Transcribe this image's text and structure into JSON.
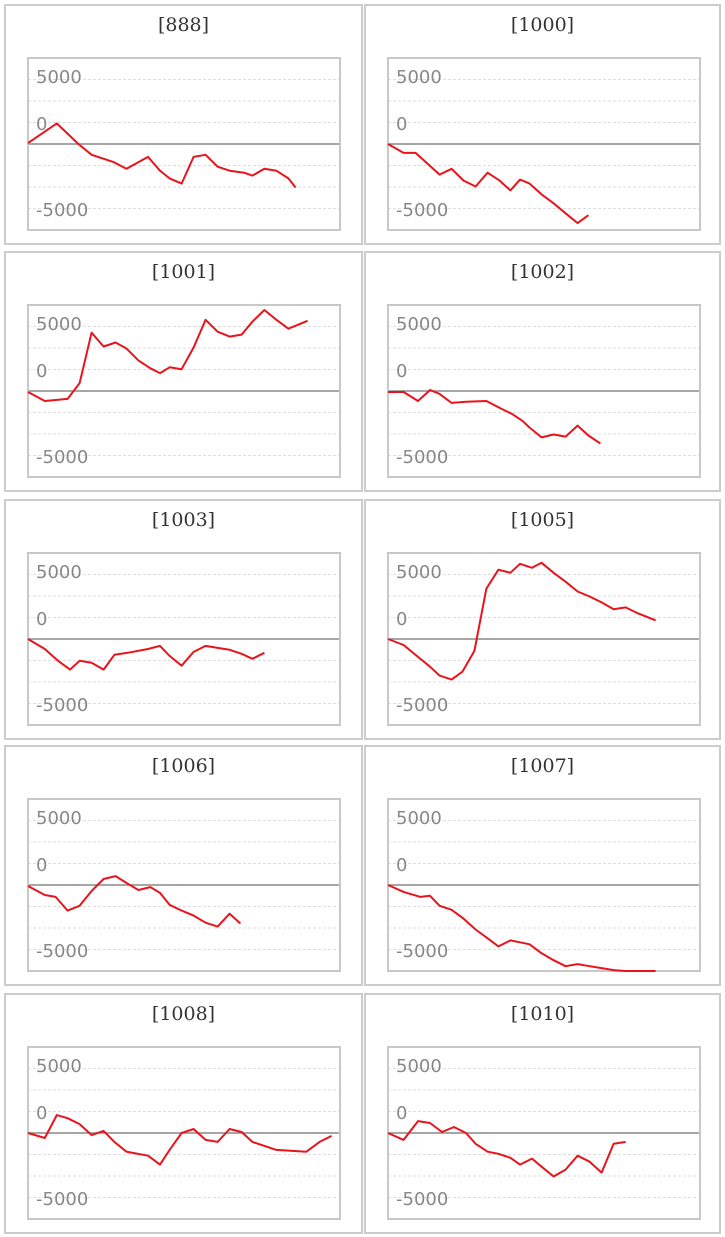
{
  "chart_data": [
    {
      "type": "line",
      "title": "[888]",
      "color": "#e8141c",
      "xlim": [
        0,
        26
      ],
      "ylim": [
        -5000,
        5000
      ],
      "yticks": [
        5000,
        0,
        -5000
      ],
      "x": [
        0,
        2.4,
        4.2,
        5.3,
        7.1,
        8.2,
        10,
        11,
        11.8,
        12.8,
        13.8,
        14.8,
        15.8,
        16.8,
        18,
        18.7,
        19.7,
        20.7,
        21.7,
        22.3
      ],
      "values": [
        50,
        1200,
        0,
        -630,
        -1040,
        -1440,
        -750,
        -1550,
        -2000,
        -2300,
        -750,
        -630,
        -1320,
        -1550,
        -1670,
        -1840,
        -1440,
        -1550,
        -2000,
        -2530
      ]
    },
    {
      "type": "line",
      "title": "[1000]",
      "color": "#e8141c",
      "xlim": [
        0,
        26
      ],
      "ylim": [
        -5000,
        5000
      ],
      "yticks": [
        5000,
        0,
        -5000
      ],
      "x": [
        0,
        1.3,
        2.3,
        3.3,
        4.3,
        5.3,
        6.3,
        7.3,
        8.3,
        9.3,
        10.2,
        11,
        11.8,
        12.8,
        13.8,
        14.8,
        15.8,
        16.7
      ],
      "values": [
        0,
        -520,
        -520,
        -1150,
        -1780,
        -1440,
        -2130,
        -2470,
        -1670,
        -2130,
        -2700,
        -2070,
        -2300,
        -2930,
        -3450,
        -4030,
        -4600,
        -4140
      ]
    },
    {
      "type": "line",
      "title": "[1001]",
      "color": "#e8141c",
      "xlim": [
        0,
        26
      ],
      "ylim": [
        -5000,
        5000
      ],
      "yticks": [
        5000,
        0,
        -5000
      ],
      "x": [
        0,
        1.4,
        3.3,
        4.3,
        5.3,
        6.3,
        7.3,
        8.2,
        9.2,
        10.2,
        11,
        11.8,
        12.8,
        13.8,
        14.8,
        15.8,
        16.8,
        17.8,
        18.7,
        19.7,
        20.7,
        21.7,
        23.3
      ],
      "values": [
        -60,
        -580,
        -460,
        460,
        3390,
        2590,
        2820,
        2470,
        1780,
        1320,
        1040,
        1380,
        1270,
        2530,
        4140,
        3450,
        3160,
        3280,
        4030,
        4710,
        4140,
        3620,
        4080
      ]
    },
    {
      "type": "line",
      "title": "[1002]",
      "color": "#e8141c",
      "xlim": [
        0,
        26
      ],
      "ylim": [
        -5000,
        5000
      ],
      "yticks": [
        5000,
        0,
        -5000
      ],
      "x": [
        0,
        1.3,
        2.5,
        3.5,
        4.3,
        5.3,
        6.5,
        8.2,
        9.3,
        10.3,
        11.2,
        11.8,
        12.8,
        13.8,
        14.8,
        15.8,
        16.7,
        17.7
      ],
      "values": [
        -60,
        -60,
        -580,
        60,
        -170,
        -690,
        -630,
        -580,
        -980,
        -1320,
        -1730,
        -2130,
        -2700,
        -2530,
        -2650,
        -2010,
        -2590,
        -3050
      ]
    },
    {
      "type": "line",
      "title": "[1003]",
      "color": "#e8141c",
      "xlim": [
        0,
        26
      ],
      "ylim": [
        -5000,
        5000
      ],
      "yticks": [
        5000,
        0,
        -5000
      ],
      "x": [
        0,
        1.4,
        2.5,
        3.5,
        4.3,
        5.3,
        6.3,
        7.2,
        8.3,
        10,
        11,
        11.8,
        12.8,
        13.8,
        14.8,
        15.8,
        16.8,
        17.8,
        18.7,
        19.7
      ],
      "values": [
        0,
        -580,
        -1270,
        -1780,
        -1270,
        -1380,
        -1780,
        -920,
        -800,
        -580,
        -400,
        -980,
        -1550,
        -750,
        -400,
        -520,
        -630,
        -860,
        -1150,
        -800
      ]
    },
    {
      "type": "line",
      "title": "[1005]",
      "color": "#e8141c",
      "xlim": [
        0,
        26
      ],
      "ylim": [
        -5000,
        5000
      ],
      "yticks": [
        5000,
        0,
        -5000
      ],
      "x": [
        0,
        1.3,
        2.5,
        3.5,
        4.3,
        5.3,
        6.2,
        7.2,
        8.2,
        9.2,
        10.2,
        11,
        12,
        12.8,
        13.8,
        14.8,
        15.8,
        16.8,
        17.8,
        18.8,
        19.8,
        20.8,
        22.3
      ],
      "values": [
        0,
        -350,
        -1040,
        -1610,
        -2130,
        -2360,
        -1900,
        -690,
        2930,
        4030,
        3850,
        4370,
        4140,
        4430,
        3850,
        3330,
        2760,
        2470,
        2130,
        1730,
        1840,
        1500,
        1090
      ]
    },
    {
      "type": "line",
      "title": "[1006]",
      "color": "#e8141c",
      "xlim": [
        0,
        26
      ],
      "ylim": [
        -5000,
        5000
      ],
      "yticks": [
        5000,
        0,
        -5000
      ],
      "x": [
        0,
        1.4,
        2.3,
        3.3,
        4.3,
        5.3,
        6.3,
        7.3,
        8.2,
        9.2,
        10.2,
        11,
        11.8,
        12.8,
        13.8,
        14.8,
        15.8,
        16.8,
        17.7
      ],
      "values": [
        -60,
        -580,
        -690,
        -1490,
        -1210,
        -350,
        350,
        520,
        120,
        -290,
        -120,
        -460,
        -1150,
        -1490,
        -1780,
        -2190,
        -2420,
        -1670,
        -2240
      ]
    },
    {
      "type": "line",
      "title": "[1007]",
      "color": "#e8141c",
      "xlim": [
        0,
        26
      ],
      "ylim": [
        -5000,
        5000
      ],
      "yticks": [
        5000,
        0,
        -5000
      ],
      "x": [
        0,
        1.3,
        2.7,
        3.5,
        4.3,
        5.3,
        6.3,
        7.3,
        8.3,
        9.2,
        10.2,
        11,
        11.8,
        12.8,
        13.8,
        14.8,
        15.8,
        16.8,
        17.8,
        18.8,
        19.8,
        22.3
      ],
      "values": [
        0,
        -400,
        -690,
        -630,
        -1210,
        -1440,
        -1960,
        -2590,
        -3100,
        -3570,
        -3220,
        -3330,
        -3450,
        -3970,
        -4370,
        -4720,
        -4600,
        -4720,
        -4830,
        -4950,
        -5000,
        -5000
      ]
    },
    {
      "type": "line",
      "title": "[1008]",
      "color": "#e8141c",
      "xlim": [
        0,
        26
      ],
      "ylim": [
        -5000,
        5000
      ],
      "yticks": [
        5000,
        0,
        -5000
      ],
      "x": [
        0,
        1.4,
        2.4,
        3.3,
        4.3,
        5.3,
        6.3,
        7.2,
        8.2,
        10,
        11,
        11.8,
        12.8,
        13.8,
        14.8,
        15.8,
        16.8,
        17.8,
        18.7,
        20.7,
        23.2,
        24.3,
        25.3
      ],
      "values": [
        0,
        -290,
        1040,
        860,
        520,
        -120,
        120,
        -520,
        -1090,
        -1320,
        -1840,
        -980,
        0,
        230,
        -400,
        -520,
        230,
        60,
        -520,
        -980,
        -1090,
        -520,
        -170
      ]
    },
    {
      "type": "line",
      "title": "[1010]",
      "color": "#e8141c",
      "xlim": [
        0,
        26
      ],
      "ylim": [
        -5000,
        5000
      ],
      "yticks": [
        5000,
        0,
        -5000
      ],
      "x": [
        0,
        1.3,
        2.5,
        3.5,
        4.5,
        5.5,
        6.5,
        7.3,
        8.3,
        9.2,
        10.2,
        11,
        12,
        12.8,
        13.8,
        14.8,
        15.8,
        16.8,
        17.8,
        18.8,
        19.8
      ],
      "values": [
        0,
        -400,
        690,
        580,
        60,
        350,
        0,
        -630,
        -1090,
        -1210,
        -1440,
        -1840,
        -1490,
        -1960,
        -2530,
        -2130,
        -1320,
        -1670,
        -2300,
        -630,
        -520
      ]
    }
  ]
}
